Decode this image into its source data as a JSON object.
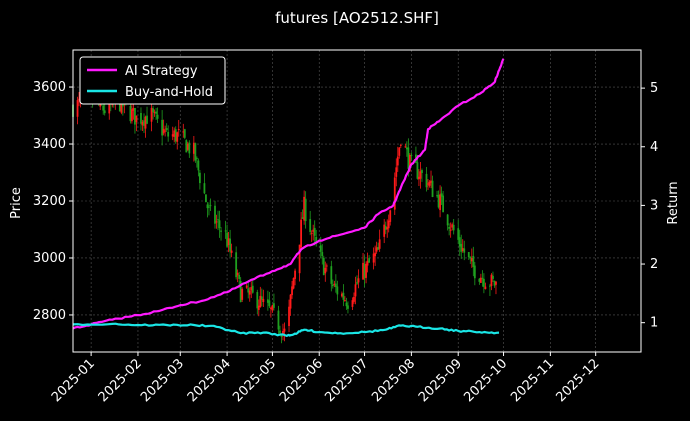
{
  "chart_data": {
    "type": "line",
    "title": "futures [AO2512.SHF]",
    "ylabel": "Price",
    "y2label": "Return",
    "x_tick_labels": [
      "2025-01",
      "2025-02",
      "2025-03",
      "2025-04",
      "2025-05",
      "2025-06",
      "2025-07",
      "2025-08",
      "2025-09",
      "2025-10",
      "2025-11",
      "2025-12"
    ],
    "y_ticks": [
      2800,
      3000,
      3200,
      3400,
      3600
    ],
    "y_tick_labels": [
      "2800",
      "3000",
      "3200",
      "3400",
      "3600"
    ],
    "y2_ticks": [
      1,
      2,
      3,
      4,
      5
    ],
    "y2_tick_labels": [
      "1",
      "2",
      "3",
      "4",
      "5"
    ],
    "ylim": [
      2670,
      3730
    ],
    "y2lim": [
      0.5,
      5.65
    ],
    "xlim": [
      "2024-12-20",
      "2025-12-31"
    ],
    "grid": true,
    "legend_placement": "top-left",
    "colors": {
      "background": "#000000",
      "up_candle": "#ff1a1a",
      "down_candle": "#1fa01f",
      "grid": "#555555",
      "text": "#ffffff"
    },
    "candles": {
      "note_colors": "red = up day, green = down day",
      "anchors": [
        [
          "2024-12-20",
          3530
        ],
        [
          "2024-12-31",
          3560
        ],
        [
          "2025-01-10",
          3520
        ],
        [
          "2025-01-20",
          3545
        ],
        [
          "2025-01-31",
          3490
        ],
        [
          "2025-02-10",
          3500
        ],
        [
          "2025-02-20",
          3430
        ],
        [
          "2025-02-28",
          3430
        ],
        [
          "2025-03-10",
          3370
        ],
        [
          "2025-03-20",
          3160
        ],
        [
          "2025-03-31",
          3080
        ],
        [
          "2025-04-10",
          2880
        ],
        [
          "2025-04-20",
          2860
        ],
        [
          "2025-04-30",
          2810
        ],
        [
          "2025-05-10",
          2730
        ],
        [
          "2025-05-15",
          2930
        ],
        [
          "2025-05-22",
          3180
        ],
        [
          "2025-05-31",
          3020
        ],
        [
          "2025-06-10",
          2900
        ],
        [
          "2025-06-20",
          2850
        ],
        [
          "2025-06-30",
          2950
        ],
        [
          "2025-07-10",
          3020
        ],
        [
          "2025-07-18",
          3180
        ],
        [
          "2025-07-25",
          3430
        ],
        [
          "2025-07-31",
          3330
        ],
        [
          "2025-08-10",
          3280
        ],
        [
          "2025-08-20",
          3200
        ],
        [
          "2025-08-31",
          3070
        ],
        [
          "2025-09-10",
          2970
        ],
        [
          "2025-09-20",
          2920
        ],
        [
          "2025-09-28",
          2905
        ]
      ]
    },
    "series": [
      {
        "name": "AI Strategy",
        "color": "#ff1aff",
        "points": [
          [
            "2024-12-20",
            0.9
          ],
          [
            "2025-01-01",
            0.97
          ],
          [
            "2025-01-15",
            1.05
          ],
          [
            "2025-02-01",
            1.13
          ],
          [
            "2025-02-15",
            1.2
          ],
          [
            "2025-03-01",
            1.3
          ],
          [
            "2025-03-15",
            1.37
          ],
          [
            "2025-04-01",
            1.52
          ],
          [
            "2025-04-15",
            1.7
          ],
          [
            "2025-05-01",
            1.88
          ],
          [
            "2025-05-13",
            2.0
          ],
          [
            "2025-05-20",
            2.25
          ],
          [
            "2025-06-01",
            2.4
          ],
          [
            "2025-06-15",
            2.5
          ],
          [
            "2025-07-01",
            2.62
          ],
          [
            "2025-07-10",
            2.85
          ],
          [
            "2025-07-20",
            3.0
          ],
          [
            "2025-07-25",
            3.3
          ],
          [
            "2025-08-01",
            3.7
          ],
          [
            "2025-08-10",
            3.95
          ],
          [
            "2025-08-12",
            4.3
          ],
          [
            "2025-08-20",
            4.45
          ],
          [
            "2025-09-01",
            4.7
          ],
          [
            "2025-09-15",
            4.9
          ],
          [
            "2025-09-25",
            5.1
          ],
          [
            "2025-09-28",
            5.3
          ],
          [
            "2025-10-01",
            5.5
          ]
        ]
      },
      {
        "name": "Buy-and-Hold",
        "color": "#1ae6e6",
        "points": [
          [
            "2024-12-20",
            0.97
          ],
          [
            "2025-01-15",
            0.98
          ],
          [
            "2025-02-01",
            0.96
          ],
          [
            "2025-02-20",
            0.96
          ],
          [
            "2025-03-10",
            0.96
          ],
          [
            "2025-03-25",
            0.93
          ],
          [
            "2025-04-10",
            0.82
          ],
          [
            "2025-04-25",
            0.83
          ],
          [
            "2025-05-10",
            0.78
          ],
          [
            "2025-05-15",
            0.8
          ],
          [
            "2025-05-22",
            0.88
          ],
          [
            "2025-06-01",
            0.84
          ],
          [
            "2025-06-15",
            0.82
          ],
          [
            "2025-07-01",
            0.84
          ],
          [
            "2025-07-15",
            0.88
          ],
          [
            "2025-07-25",
            0.95
          ],
          [
            "2025-08-05",
            0.93
          ],
          [
            "2025-08-20",
            0.9
          ],
          [
            "2025-09-01",
            0.86
          ],
          [
            "2025-09-15",
            0.84
          ],
          [
            "2025-09-28",
            0.83
          ]
        ]
      }
    ]
  }
}
